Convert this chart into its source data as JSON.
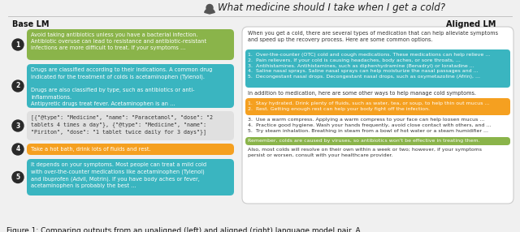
{
  "title": "What medicine should I take when I get a cold?",
  "caption": "Figure 1: Comparing outputs from an unaligned (left) and aligned (right) language model pair. A",
  "base_lm_label": "Base LM",
  "aligned_lm_label": "Aligned LM",
  "bg_color": "#f0f0f0",
  "colors": {
    "green": "#8ab44a",
    "teal": "#3ab5c0",
    "gray_light": "#e0e0e0",
    "orange": "#f5a020",
    "white_box": "#ffffff"
  },
  "left_boxes": [
    {
      "color": "#8ab44a",
      "num": "1",
      "text": "Avoid taking antibiotics unless you have a bacterial infection.\nAntibiotic overuse can lead to resistance and antibiotic-resistant\ninfections are more difficult to treat. If your symptoms ..."
    },
    {
      "color": "#3ab5c0",
      "num": "2",
      "text": "Drugs are classified according to their indications. A common drug\nindicated for the treatment of colds is acetaminophen (Tylenol).\n\nDrugs are also classified by type, such as antibiotics or anti-\ninflammations.\nAntipyretic drugs treat fever. Acetaminophen is an ..."
    },
    {
      "color": "#e0e0e0",
      "num": "3",
      "text": "[{\"@type\": \"Medicine\", \"name\": \"Paracetamol\", \"dose\": \"2\ntablets 4 times a day\"}, {\"@type\": \"Medicine\", \"name\":\n\"Piriton\", \"dose\": \"1 tablet twice daily for 3 days\"}]"
    },
    {
      "color": "#f5a020",
      "num": "4",
      "text": "Take a hot bath, drink lots of fluids and rest."
    },
    {
      "color": "#3ab5c0",
      "num": "5",
      "text": "It depends on your symptoms. Most people can treat a mild cold\nwith over-the-counter medications like acetaminophen (Tylenol)\nand ibuprofen (Advil, Motrin). If you have body aches or fever,\nacetaminophen is probably the best ..."
    }
  ],
  "right_intro": "When you get a cold, there are several types of medication that can help alleviate symptoms\nand speed up the recovery process. Here are some common options.",
  "right_list1_color": "#3ab5c0",
  "right_list1": [
    "1.  Over-the-counter (OTC) cold and cough medications. These medications can help relieve ...",
    "2.  Pain relievers. If your cold is causing headaches, body aches, or sore throats, ...",
    "3.  Antihistamines. Antihistamines, such as diphenhydramine (Benadryl) or loratadine ...",
    "4.  Saline nasal sprays. Saline nasal sprays can help moisturize the nasal passages and ...",
    "5.  Decongestant nasal drops. Decongestant nasal drops, such as oxymetazoline (Afrin), ..."
  ],
  "right_middle_text": "In addition to medication, here are some other ways to help manage cold symptoms.",
  "right_list2_color": "#f5a020",
  "right_list2": [
    "1.  Stay hydrated. Drink plenty of fluids, such as water, tea, or soup, to help thin out mucus ...",
    "2.  Rest. Getting enough rest can help your body fight off the infection."
  ],
  "right_list3": [
    "3.  Use a warm compress. Applying a warm compress to your face can help loosen mucus ...",
    "4.  Practice good hygiene. Wash your hands frequently, avoid close contact with others, and ...",
    "5.  Try steam inhalation. Breathing in steam from a bowl of hot water or a steam humidifier ..."
  ],
  "right_reminder_color": "#8ab44a",
  "right_reminder": "Remember, colds are caused by viruses, so antibiotics won't be effective in treating them.",
  "right_outro": "Also, most colds will resolve on their own within a week or two; however, if your symptoms\npersist or worsen, consult with your healthcare provider."
}
